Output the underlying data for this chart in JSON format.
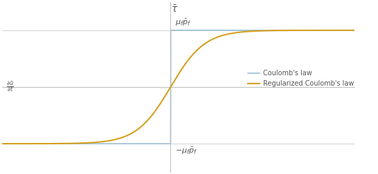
{
  "title_y": "$\\bar{\\tau}$",
  "xlabel": "$\\frac{\\partial \\bar{u}}{\\partial t}$",
  "y_upper_label": "$\\mu_f \\bar{p}_f$",
  "y_lower_label": "$-\\mu_f \\bar{p}_f$",
  "coulomb_color": "#9bbfd4",
  "regularized_color": "#d4a020",
  "background_color": "#ffffff",
  "spine_color": "#bbbbbb",
  "refline_color": "#cccccc",
  "xlim": [
    -5.5,
    6.0
  ],
  "ylim": [
    -1.5,
    1.5
  ],
  "y_upper": 1.0,
  "y_lower": -1.0,
  "legend_labels": [
    "Coulomb's law",
    "Regularized Coulomb's law"
  ],
  "steepness": 1.8,
  "yaxis_x": 0.0,
  "text_color": "#555555",
  "label_fontsize": 8,
  "tau_fontsize": 10
}
